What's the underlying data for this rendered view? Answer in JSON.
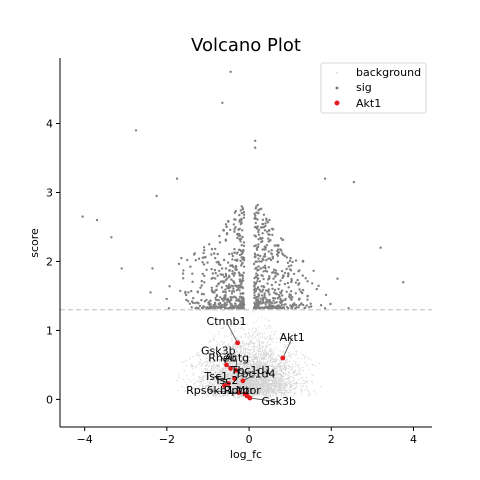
{
  "chart_data": {
    "type": "scatter",
    "title": "Volcano Plot",
    "xlabel": "log_fc",
    "ylabel": "score",
    "xlim": [
      -4.6,
      4.45
    ],
    "ylim": [
      -0.4,
      4.95
    ],
    "xticks": [
      "−4",
      "−2",
      "0",
      "2",
      "4"
    ],
    "xtick_values": [
      -4,
      -2,
      0,
      2,
      4
    ],
    "yticks": [
      "0",
      "1",
      "2",
      "3",
      "4"
    ],
    "ytick_values": [
      0,
      1,
      2,
      3,
      4
    ],
    "threshold": 1.3,
    "grid": false,
    "legend_position": "upper right",
    "colors": {
      "background": "#d3d3d3",
      "sig": "#808080",
      "highlight": "#e41a1c",
      "threshold": "#c8c8c8"
    },
    "series": [
      {
        "name": "background",
        "cloud": {
          "count": 4200,
          "x_sd": 0.55,
          "y_max": 1.3
        }
      },
      {
        "name": "sig",
        "cloud": {
          "count": 900,
          "x_sd": 0.7,
          "y_min": 1.3,
          "y_max": 4.8
        },
        "points": [
          [
            -0.45,
            4.75
          ],
          [
            -0.65,
            4.3
          ],
          [
            -2.75,
            3.9
          ],
          [
            0.15,
            3.75
          ],
          [
            0.15,
            3.65
          ],
          [
            2.55,
            3.15
          ],
          [
            1.85,
            3.2
          ],
          [
            -1.75,
            3.2
          ],
          [
            3.2,
            2.2
          ],
          [
            3.75,
            1.7
          ],
          [
            -4.05,
            2.65
          ],
          [
            -3.7,
            2.6
          ],
          [
            -3.35,
            2.35
          ],
          [
            -3.1,
            1.9
          ],
          [
            -2.35,
            1.9
          ],
          [
            -2.25,
            2.95
          ],
          [
            2.15,
            1.75
          ]
        ]
      },
      {
        "name": "Akt1",
        "points": [
          {
            "x": -0.28,
            "y": 0.82,
            "label": "Ctnnb1"
          },
          {
            "x": 0.82,
            "y": 0.6,
            "label": "Akt1"
          },
          {
            "x": -0.55,
            "y": 0.5,
            "label": "Gsk3b"
          },
          {
            "x": -0.45,
            "y": 0.45,
            "label": "Rheb"
          },
          {
            "x": -0.32,
            "y": 0.42,
            "label": "Actg"
          },
          {
            "x": -0.35,
            "y": 0.3,
            "label": "Tbc1d1"
          },
          {
            "x": -0.15,
            "y": 0.27,
            "label": "Tbc1d4"
          },
          {
            "x": -0.5,
            "y": 0.23,
            "label": "Tsc1"
          },
          {
            "x": -0.6,
            "y": 0.2,
            "label": "Tsc2"
          },
          {
            "x": -0.25,
            "y": 0.1,
            "label": "Rps6kb1"
          },
          {
            "x": -0.1,
            "y": 0.08,
            "label": "Rptor"
          },
          {
            "x": -0.05,
            "y": 0.05,
            "label": "Mtor"
          },
          {
            "x": 0.02,
            "y": 0.02,
            "label": "Gsk3b"
          }
        ]
      }
    ],
    "annotations": [
      {
        "text": "Ctnnb1",
        "x": -0.55,
        "y": 1.08
      },
      {
        "text": "Akt1",
        "x": 1.05,
        "y": 0.85
      },
      {
        "text": "Gsk3b",
        "x": -0.75,
        "y": 0.65
      },
      {
        "text": "Rheb",
        "x": -0.65,
        "y": 0.55
      },
      {
        "text": "Actg",
        "x": -0.3,
        "y": 0.55
      },
      {
        "text": "Tbc1d1",
        "x": 0.05,
        "y": 0.37
      },
      {
        "text": "Tbc1d4",
        "x": 0.15,
        "y": 0.32
      },
      {
        "text": "Tsc1",
        "x": -0.8,
        "y": 0.28
      },
      {
        "text": "Tsc2",
        "x": -0.55,
        "y": 0.22
      },
      {
        "text": "Rps6kb1",
        "x": -0.95,
        "y": 0.08
      },
      {
        "text": "Rptor",
        "x": -0.25,
        "y": 0.08
      },
      {
        "text": "Mtor",
        "x": -0.02,
        "y": 0.08
      },
      {
        "text": "Gsk3b",
        "x": 0.72,
        "y": -0.08
      }
    ]
  }
}
